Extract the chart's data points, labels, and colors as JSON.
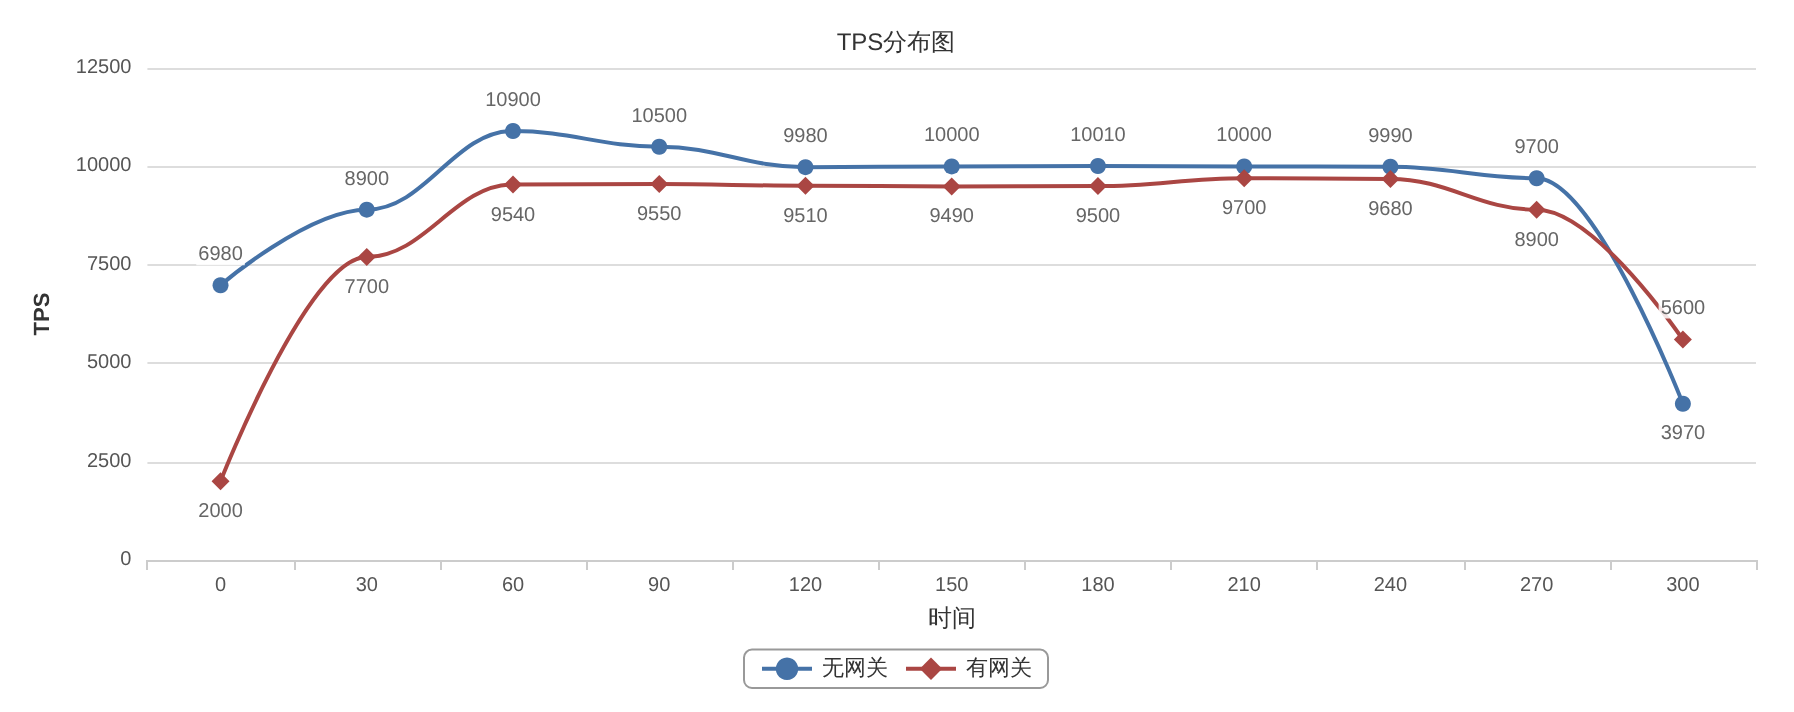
{
  "chart_data": {
    "type": "line",
    "title": "TPS分布图",
    "xlabel": "时间",
    "ylabel": "TPS",
    "categories": [
      "0",
      "30",
      "60",
      "90",
      "120",
      "150",
      "180",
      "210",
      "240",
      "270",
      "300"
    ],
    "series": [
      {
        "name": "无网关",
        "color": "#4572a7",
        "marker": "circle",
        "values": [
          6980,
          8900,
          10900,
          10500,
          9980,
          10000,
          10010,
          10000,
          9990,
          9700,
          3970
        ]
      },
      {
        "name": "有网关",
        "color": "#aa4643",
        "marker": "diamond",
        "values": [
          2000,
          7700,
          9540,
          9550,
          9510,
          9490,
          9500,
          9700,
          9680,
          8900,
          5600
        ]
      }
    ],
    "ylim": [
      0,
      12500
    ],
    "yticks": [
      0,
      2500,
      5000,
      7500,
      10000,
      12500
    ],
    "grid": "y",
    "legend": "bottom",
    "data_labels": true
  }
}
